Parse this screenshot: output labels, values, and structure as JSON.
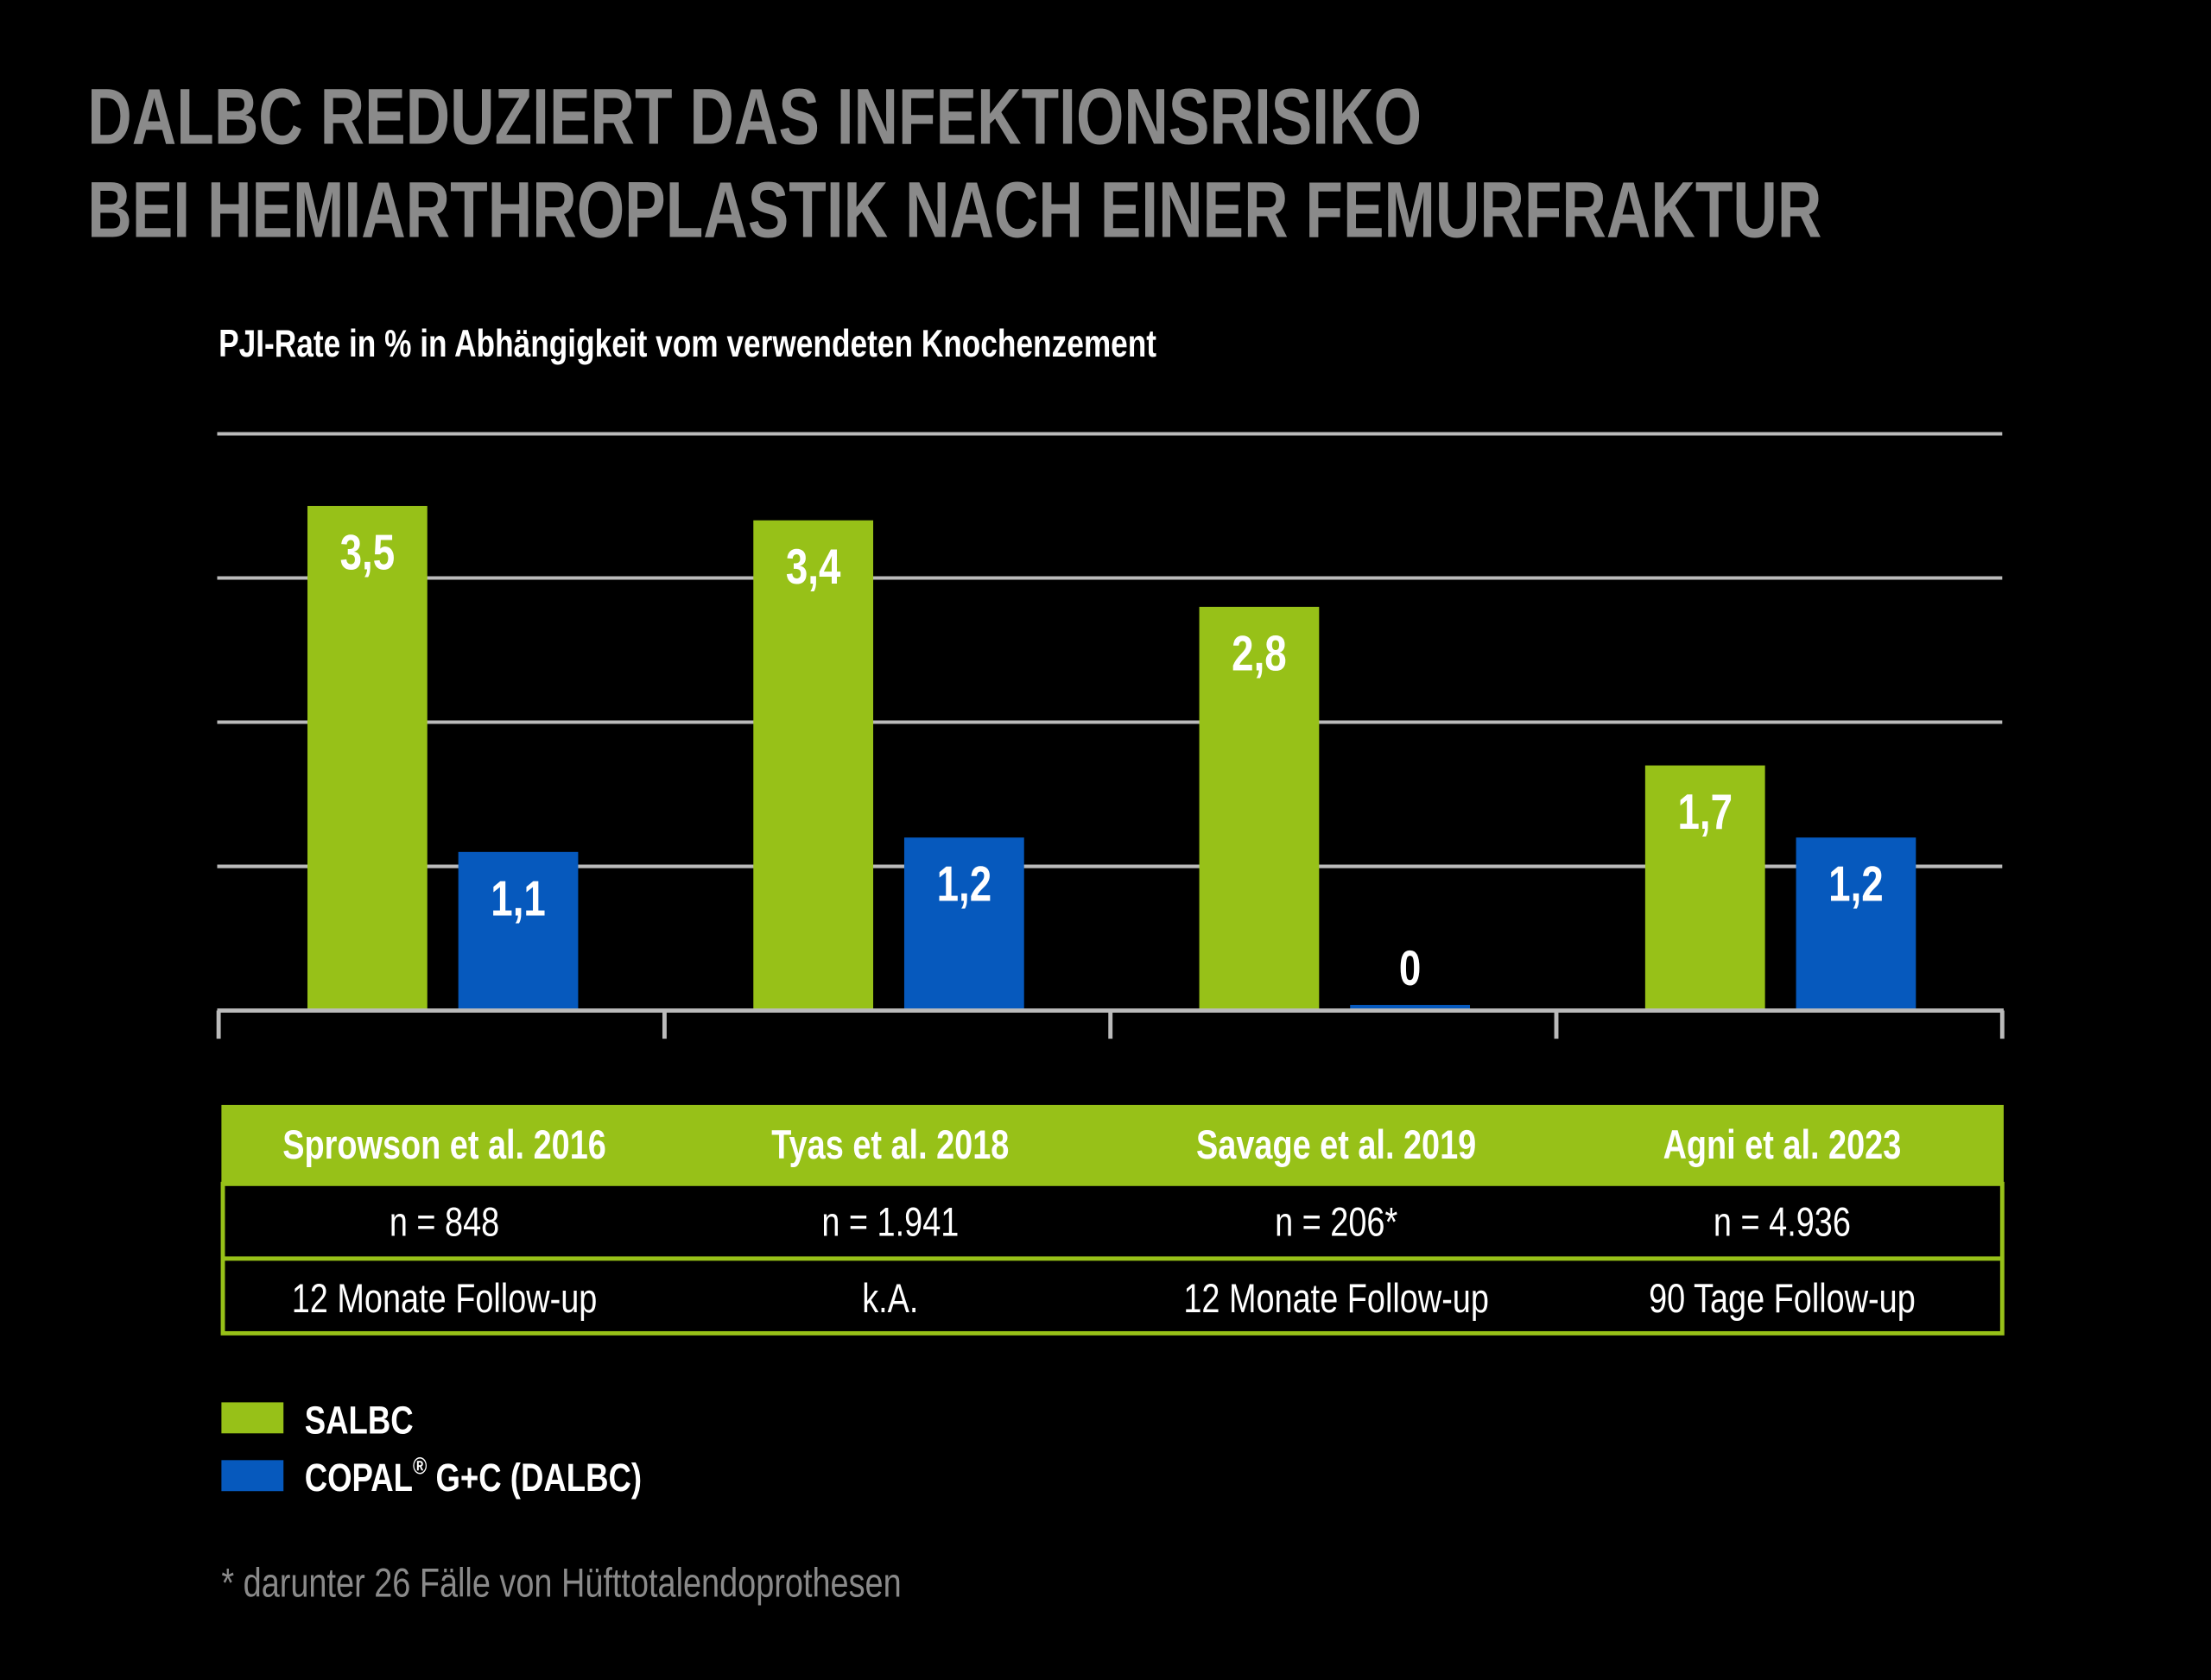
{
  "title_lines": [
    "DALBC REDUZIERT DAS INFEKTIONSRISIKO",
    "BEI HEMIARTHROPLASTIK NACH EINER FEMURFRAKTUR"
  ],
  "colors": {
    "background": "#000000",
    "salbc": "#97c118",
    "dalbc": "#0659bd",
    "grid": "#bbbbbb",
    "title": "#8a8a8a"
  },
  "chart_data": {
    "type": "bar",
    "title": "PJI-Rate in % in Abhängigkeit vom verwendeten Knochenzement",
    "categories": [
      "Sprowson et al. 2016",
      "Tyas et al. 2018",
      "Savage et al. 2019",
      "Agni et al. 2023"
    ],
    "series": [
      {
        "name": "SALBC",
        "values": [
          3.5,
          3.4,
          2.8,
          1.7
        ],
        "labels": [
          "3,5",
          "3,4",
          "2,8",
          "1,7"
        ]
      },
      {
        "name": "COPAL® G+C (DALBC)",
        "values": [
          1.1,
          1.2,
          0,
          1.2
        ],
        "labels": [
          "1,1",
          "1,2",
          "0",
          "1,2"
        ]
      }
    ],
    "ylim": [
      0,
      4
    ],
    "grid": true,
    "legend_placement": "bottom-left"
  },
  "table": {
    "headers": [
      "Sprowson et al. 2016",
      "Tyas et al. 2018",
      "Savage et al. 2019",
      "Agni et al. 2023"
    ],
    "rows": [
      [
        "n = 848",
        "n = 1.941",
        "n = 206*",
        "n = 4.936"
      ],
      [
        "12 Monate Follow-up",
        "k.A.",
        "12 Monate Follow-up",
        "90 Tage Follow-up"
      ]
    ]
  },
  "legend": [
    {
      "label": "SALBC"
    },
    {
      "label": "COPAL",
      "sup": "®",
      "rest": " G+C (DALBC)"
    }
  ],
  "footnote": "* darunter 26 Fälle von Hüfttotalendoprothesen"
}
